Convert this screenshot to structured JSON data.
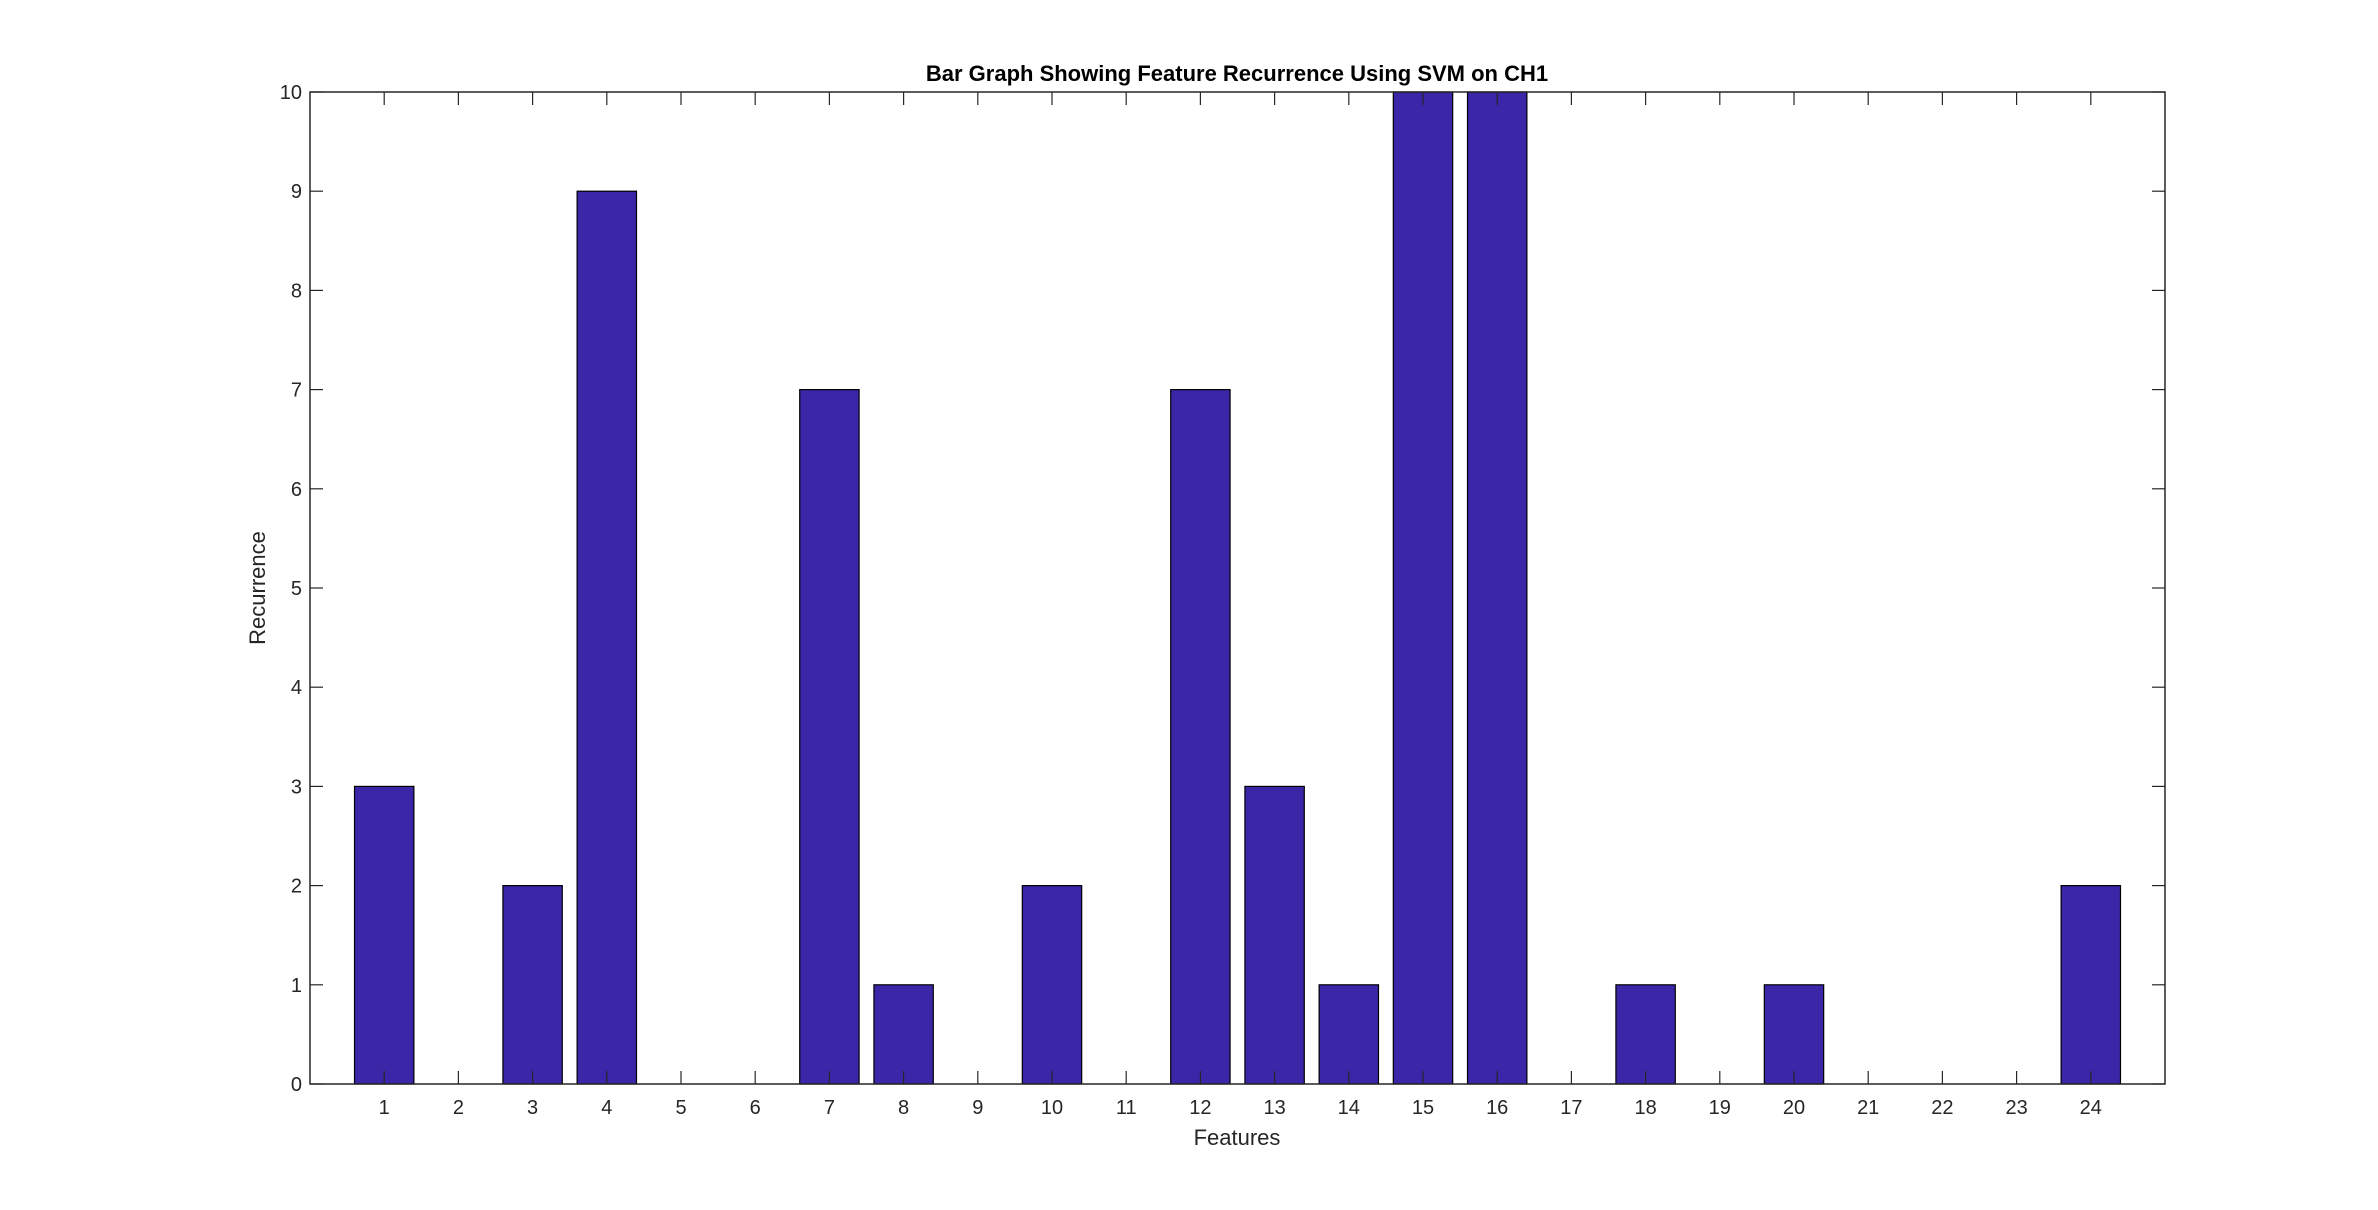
{
  "chart_data": {
    "type": "bar",
    "title": "Bar Graph Showing Feature Recurrence Using SVM on CH1",
    "xlabel": "Features",
    "ylabel": "Recurrence",
    "categories": [
      "1",
      "2",
      "3",
      "4",
      "5",
      "6",
      "7",
      "8",
      "9",
      "10",
      "11",
      "12",
      "13",
      "14",
      "15",
      "16",
      "17",
      "18",
      "19",
      "20",
      "21",
      "22",
      "23",
      "24"
    ],
    "values": [
      3,
      0,
      2,
      9,
      0,
      0,
      7,
      1,
      0,
      2,
      0,
      7,
      3,
      1,
      10,
      10,
      0,
      1,
      0,
      1,
      0,
      0,
      0,
      2
    ],
    "ylim": [
      0,
      10
    ],
    "yticks": [
      0,
      1,
      2,
      3,
      4,
      5,
      6,
      7,
      8,
      9,
      10
    ],
    "xlim": [
      0,
      25
    ],
    "grid": false,
    "bar_color": "#3b26a8",
    "edge_color": "#000000",
    "axis_color": "#262626"
  }
}
